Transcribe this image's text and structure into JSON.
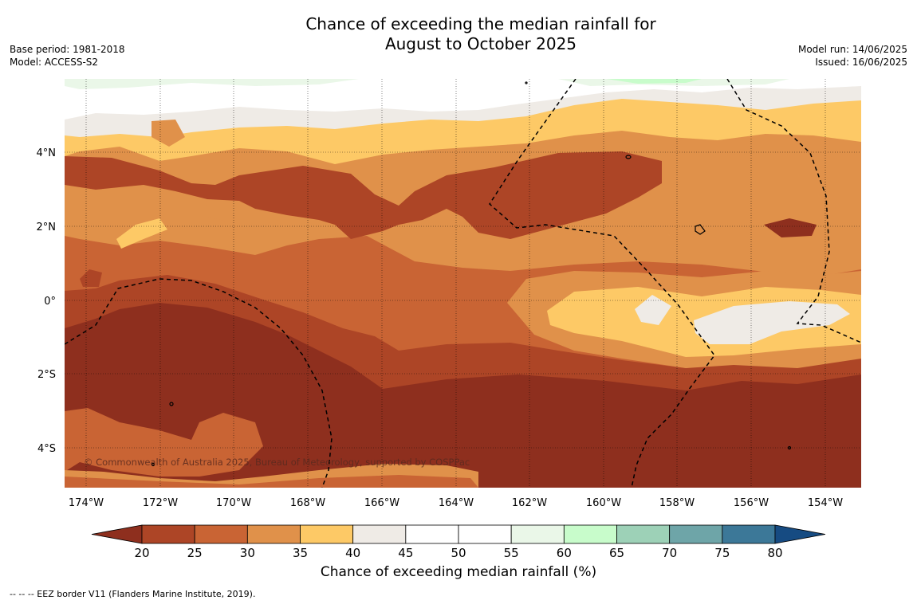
{
  "title": {
    "line1": "Chance of exceeding the median rainfall for",
    "line2": "August to October 2025"
  },
  "meta": {
    "base_period": "Base period: 1981-2018",
    "model": "Model: ACCESS-S2",
    "model_run": "Model run: 14/06/2025",
    "issued": "Issued: 16/06/2025"
  },
  "map": {
    "lat_labels": [
      "4°N",
      "2°N",
      "0°",
      "2°S",
      "4°S"
    ],
    "lon_labels": [
      "174°W",
      "172°W",
      "170°W",
      "168°W",
      "166°W",
      "164°W",
      "162°W",
      "160°W",
      "158°W",
      "156°W",
      "154°W"
    ],
    "copyright": "© Commonwealth of Australia 2025, Bureau of Meteorology, supported by COSPPac"
  },
  "colorbar": {
    "ticks": [
      "20",
      "25",
      "30",
      "35",
      "40",
      "45",
      "50",
      "55",
      "60",
      "65",
      "70",
      "75",
      "80"
    ],
    "colors": [
      "#8e2f1e",
      "#ad4526",
      "#c96434",
      "#e0914a",
      "#fdc966",
      "#efebe6",
      "#ffffff",
      "#ffffff",
      "#eaf7e8",
      "#c8fccb",
      "#9dd1b7",
      "#6ea5a8",
      "#3c7898",
      "#164b82"
    ],
    "label": "Chance of exceeding median rainfall (%)"
  },
  "footnote": "--  --  -- EEZ border V11 (Flanders Marine Institute, 2019)."
}
